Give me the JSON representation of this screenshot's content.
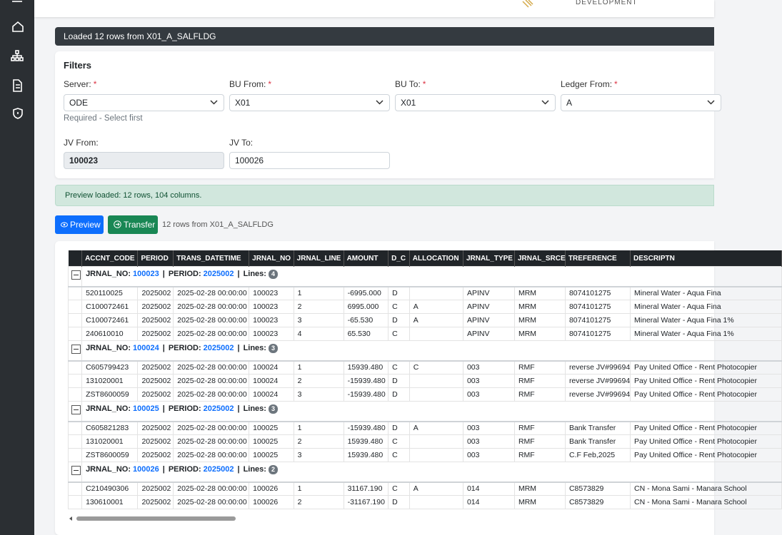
{
  "header": {
    "logo_text": "DEVELOPMENT"
  },
  "status_bar": "Loaded 12 rows from X01_A_SALFLDG",
  "filters": {
    "title": "Filters",
    "fields": [
      {
        "label": "Server:",
        "required": "*",
        "value": "ODE"
      },
      {
        "label": "BU From:",
        "required": "*",
        "value": "X01"
      },
      {
        "label": "BU To:",
        "required": "*",
        "value": "X01"
      },
      {
        "label": "Ledger From:",
        "required": "*",
        "value": "A"
      }
    ],
    "server_hint": "Required - Select first",
    "jv_from": {
      "label": "JV From:",
      "value": "100023"
    },
    "jv_to": {
      "label": "JV To:",
      "value": "100026"
    }
  },
  "alert": "Preview loaded: 12 rows, 104 columns.",
  "actions": {
    "preview": "Preview",
    "transfer": "Transfer",
    "info": "12 rows from X01_A_SALFLDG"
  },
  "table": {
    "columns": [
      "ACCNT_CODE",
      "PERIOD",
      "TRANS_DATETIME",
      "JRNAL_NO",
      "JRNAL_LINE",
      "AMOUNT",
      "D_C",
      "ALLOCATION",
      "JRNAL_TYPE",
      "JRNAL_SRCE",
      "TREFERENCE",
      "DESCRIPTN"
    ],
    "group_labels": {
      "jrnal_no": "JRNAL_NO:",
      "period": "PERIOD:",
      "lines": "Lines:",
      "separator": "|"
    },
    "groups": [
      {
        "jrnal_no": "100023",
        "period": "2025002",
        "lines": 4,
        "rows": [
          [
            "520110025",
            "2025002",
            "2025-02-28 00:00:00",
            "100023",
            "1",
            "-6995.000",
            "D",
            null,
            "APINV",
            "MRM",
            "8074101275",
            "Mineral Water - Aqua Fina"
          ],
          [
            "C100072461",
            "2025002",
            "2025-02-28 00:00:00",
            "100023",
            "2",
            "6995.000",
            "C",
            "A",
            "APINV",
            "MRM",
            "8074101275",
            "Mineral Water - Aqua Fina"
          ],
          [
            "C100072461",
            "2025002",
            "2025-02-28 00:00:00",
            "100023",
            "3",
            "-65.530",
            "D",
            "A",
            "APINV",
            "MRM",
            "8074101275",
            "Mineral Water - Aqua Fina 1%"
          ],
          [
            "240610010",
            "2025002",
            "2025-02-28 00:00:00",
            "100023",
            "4",
            "65.530",
            "C",
            null,
            "APINV",
            "MRM",
            "8074101275",
            "Mineral Water - Aqua Fina 1%"
          ]
        ]
      },
      {
        "jrnal_no": "100024",
        "period": "2025002",
        "lines": 3,
        "rows": [
          [
            "C605799423",
            "2025002",
            "2025-02-28 00:00:00",
            "100024",
            "1",
            "15939.480",
            "C",
            "C",
            "003",
            "RMF",
            "reverse JV#99694",
            "Pay United Office - Rent Photocopier"
          ],
          [
            "131020001",
            "2025002",
            "2025-02-28 00:00:00",
            "100024",
            "2",
            "-15939.480",
            "D",
            null,
            "003",
            "RMF",
            "reverse JV#99694",
            "Pay United Office - Rent Photocopier"
          ],
          [
            "ZST8600059",
            "2025002",
            "2025-02-28 00:00:00",
            "100024",
            "3",
            "-15939.480",
            "D",
            null,
            "003",
            "RMF",
            "reverse JV#99694",
            "Pay United Office - Rent Photocopier"
          ]
        ]
      },
      {
        "jrnal_no": "100025",
        "period": "2025002",
        "lines": 3,
        "rows": [
          [
            "C605821283",
            "2025002",
            "2025-02-28 00:00:00",
            "100025",
            "1",
            "-15939.480",
            "D",
            "A",
            "003",
            "RMF",
            "Bank Transfer",
            "Pay United Office - Rent Photocopier"
          ],
          [
            "131020001",
            "2025002",
            "2025-02-28 00:00:00",
            "100025",
            "2",
            "15939.480",
            "C",
            null,
            "003",
            "RMF",
            "Bank Transfer",
            "Pay United Office - Rent Photocopier"
          ],
          [
            "ZST8600059",
            "2025002",
            "2025-02-28 00:00:00",
            "100025",
            "3",
            "15939.480",
            "C",
            null,
            "003",
            "RMF",
            "C.F Feb,2025",
            "Pay United Office - Rent Photocopier"
          ]
        ]
      },
      {
        "jrnal_no": "100026",
        "period": "2025002",
        "lines": 2,
        "rows": [
          [
            "C210490306",
            "2025002",
            "2025-02-28 00:00:00",
            "100026",
            "1",
            "31167.190",
            "C",
            "A",
            "014",
            "MRM",
            "C8573829",
            "CN - Mona Sami - Manara School"
          ],
          [
            "130610001",
            "2025002",
            "2025-02-28 00:00:00",
            "100026",
            "2",
            "-31167.190",
            "D",
            null,
            "014",
            "MRM",
            "C8573829",
            "CN - Mona Sami - Manara School"
          ]
        ]
      }
    ]
  }
}
